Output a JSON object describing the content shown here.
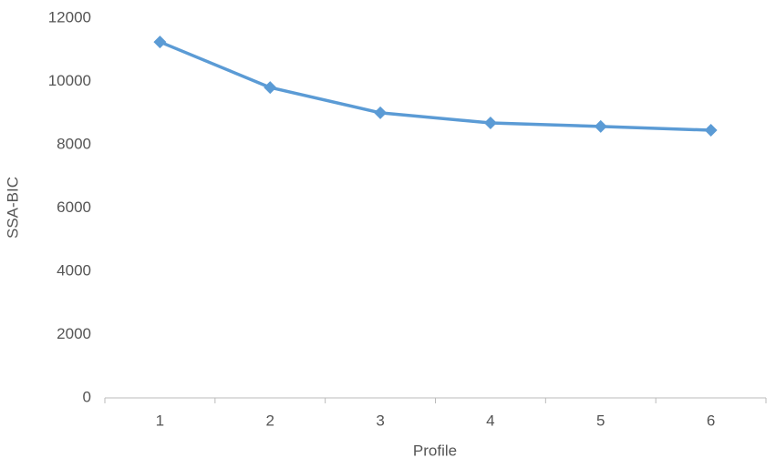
{
  "chart_data": {
    "type": "line",
    "x_label": "Profile",
    "y_label": "SSA-BIC",
    "categories": [
      "1",
      "2",
      "3",
      "4",
      "5",
      "6"
    ],
    "values": [
      11250,
      9810,
      9010,
      8690,
      8580,
      8460
    ],
    "color": "#5b9bd5",
    "ylim": [
      0,
      12000
    ],
    "yticks": [
      0,
      2000,
      4000,
      6000,
      8000,
      10000,
      12000
    ],
    "grid": false
  }
}
